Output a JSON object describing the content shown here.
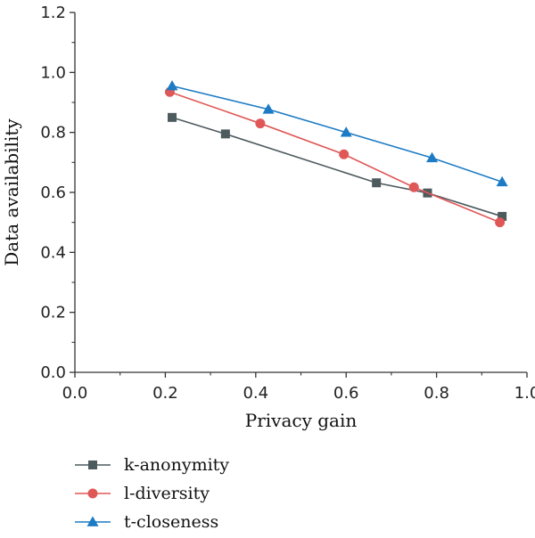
{
  "chart_data": {
    "type": "line",
    "xlabel": "Privacy gain",
    "ylabel": "Data availability",
    "xlim": [
      0.0,
      1.0
    ],
    "ylim": [
      0.0,
      1.2
    ],
    "xticks": [
      "0.0",
      "0.2",
      "0.4",
      "0.6",
      "0.8",
      "1.0"
    ],
    "yticks": [
      "0.0",
      "0.2",
      "0.4",
      "0.6",
      "0.8",
      "1.0",
      "1.2"
    ],
    "grid": false,
    "legend_position": "bottom-left",
    "series": [
      {
        "name": "k-anonymity",
        "marker": "square",
        "color": "#4d5a5e",
        "x": [
          0.215,
          0.333,
          0.667,
          0.78,
          0.945
        ],
        "y": [
          0.85,
          0.795,
          0.632,
          0.598,
          0.52
        ]
      },
      {
        "name": "l-diversity",
        "marker": "circle",
        "color": "#e05757",
        "x": [
          0.21,
          0.41,
          0.595,
          0.75,
          0.94
        ],
        "y": [
          0.935,
          0.83,
          0.727,
          0.617,
          0.5
        ]
      },
      {
        "name": "t-closeness",
        "marker": "triangle",
        "color": "#1c7bc4",
        "x": [
          0.215,
          0.428,
          0.6,
          0.79,
          0.945
        ],
        "y": [
          0.955,
          0.877,
          0.8,
          0.715,
          0.635
        ]
      }
    ]
  }
}
